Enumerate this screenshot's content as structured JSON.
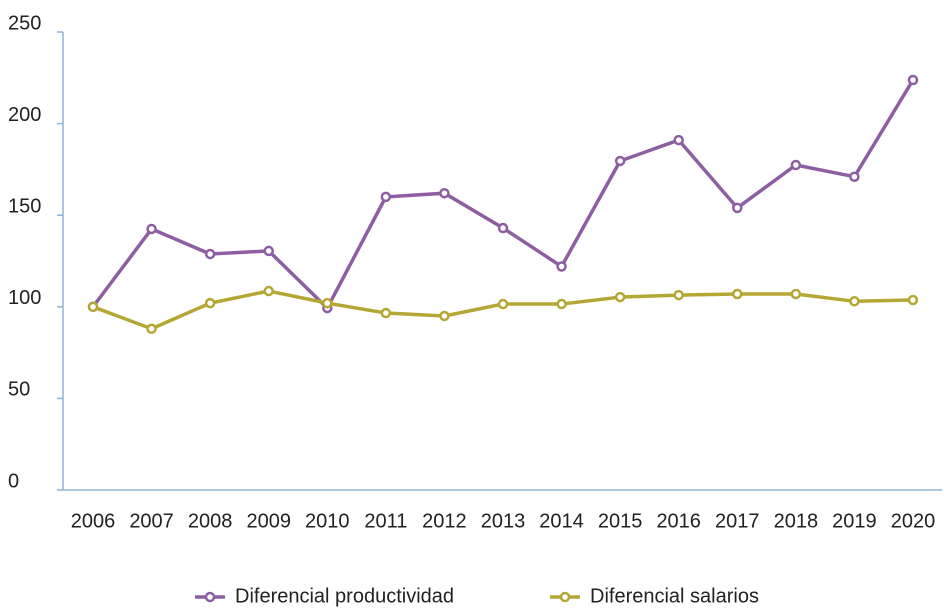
{
  "chart_data": {
    "type": "line",
    "categories": [
      "2006",
      "2007",
      "2008",
      "2009",
      "2010",
      "2011",
      "2012",
      "2013",
      "2014",
      "2015",
      "2016",
      "2017",
      "2018",
      "2019",
      "2020"
    ],
    "series": [
      {
        "name": "Diferencial productividad",
        "color": "#8e5ea2",
        "values": [
          100,
          142.5,
          128.8,
          130.5,
          99.3,
          160,
          162,
          143,
          122,
          179.6,
          191,
          154,
          177.4,
          171,
          223.8
        ]
      },
      {
        "name": "Diferencial salarios",
        "color": "#b5a733",
        "values": [
          100,
          88,
          102,
          108.6,
          102,
          96.6,
          95,
          101.5,
          101.5,
          105.3,
          106.4,
          107,
          107,
          103,
          103.7
        ]
      }
    ],
    "ylim": [
      0,
      250
    ],
    "yticks": [
      0,
      50,
      100,
      150,
      200,
      250
    ],
    "grid": false,
    "legend": "bottom"
  }
}
